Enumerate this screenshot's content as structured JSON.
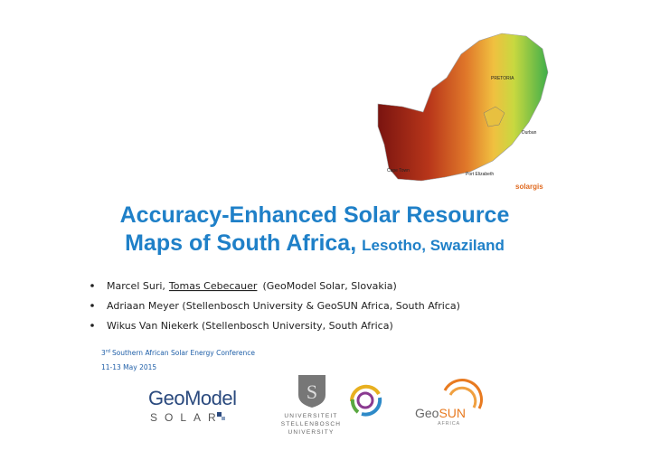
{
  "header": {
    "title_line1": "Accuracy-Enhanced Solar Resource",
    "title_line2_main": "Maps of South Africa,",
    "title_line2_sub": "Lesotho, Swaziland"
  },
  "authors": [
    {
      "name_main": "Marcel Suri,",
      "name_presenter": "Tomas Cebecauer",
      "affiliation": "(GeoModel Solar, Slovakia)"
    },
    {
      "text": "Adriaan Meyer (Stellenbosch University & GeoSUN Africa, South Africa)"
    },
    {
      "text": "Wikus Van Niekerk (Stellenbosch University, South Africa)"
    }
  ],
  "conference": {
    "ordinal": "3",
    "ordinal_suffix": "rd",
    "name": "Southern African Solar Energy Conference",
    "dates": "11-13 May 2015"
  },
  "map": {
    "labels": [
      "PRETORIA",
      "Durban",
      "Cape Town",
      "Port Elizabeth"
    ],
    "brand": "solargis"
  },
  "logos": {
    "geomodel": "GeoModel",
    "geomodel_sub": "SOLAR",
    "stellenbosch": [
      "UNIVERSITEIT",
      "STELLENBOSCH",
      "UNIVERSITY"
    ],
    "geosun_geo": "Geo",
    "geosun_sun": "SUN",
    "geosun_sub": "AFRICA"
  }
}
